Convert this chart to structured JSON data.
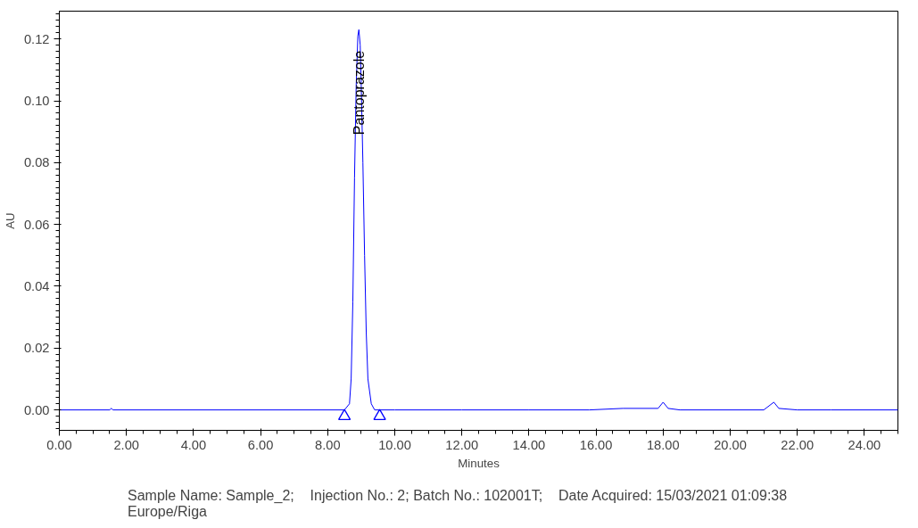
{
  "chart_data": {
    "type": "line",
    "xlabel": "Minutes",
    "ylabel": "AU",
    "xlim": [
      0,
      25
    ],
    "ylim": [
      -0.0066,
      0.129
    ],
    "xticks": [
      {
        "value": 0,
        "label": "0.00"
      },
      {
        "value": 2,
        "label": "2.00"
      },
      {
        "value": 4,
        "label": "4.00"
      },
      {
        "value": 6,
        "label": "6.00"
      },
      {
        "value": 8,
        "label": "8.00"
      },
      {
        "value": 10,
        "label": "10.00"
      },
      {
        "value": 12,
        "label": "12.00"
      },
      {
        "value": 14,
        "label": "14.00"
      },
      {
        "value": 16,
        "label": "16.00"
      },
      {
        "value": 18,
        "label": "18.00"
      },
      {
        "value": 20,
        "label": "20.00"
      },
      {
        "value": 22,
        "label": "22.00"
      },
      {
        "value": 24,
        "label": "24.00"
      }
    ],
    "yticks": [
      {
        "value": 0,
        "label": "0.00"
      },
      {
        "value": 0.02,
        "label": "0.02"
      },
      {
        "value": 0.04,
        "label": "0.04"
      },
      {
        "value": 0.06,
        "label": "0.06"
      },
      {
        "value": 0.08,
        "label": "0.08"
      },
      {
        "value": 0.1,
        "label": "0.10"
      },
      {
        "value": 0.12,
        "label": "0.12"
      }
    ],
    "grid": false,
    "legend": "bottom",
    "marker": "none",
    "line_style": "solid",
    "series": [
      {
        "name": "Sample Name: Sample_2;    Injection No.: 2; Batch No.: 102001T;    Date Acquired: 15/03/2021 01:09:38\nEurope/Riga",
        "color": "#0000ff",
        "x": [
          0,
          1.5,
          1.55,
          1.6,
          8.5,
          8.65,
          8.7,
          8.75,
          8.8,
          8.85,
          8.9,
          8.93,
          8.97,
          9.0,
          9.05,
          9.1,
          9.15,
          9.2,
          9.3,
          9.4,
          10,
          12,
          14,
          15.8,
          16.8,
          17.85,
          18.0,
          18.15,
          18.5,
          21.0,
          21.3,
          21.45,
          22,
          23,
          25
        ],
        "values": [
          0,
          0,
          0.0005,
          0,
          0,
          0.002,
          0.01,
          0.035,
          0.075,
          0.105,
          0.121,
          0.123,
          0.118,
          0.105,
          0.08,
          0.05,
          0.025,
          0.01,
          0.002,
          0,
          0,
          0,
          0,
          0,
          0.0005,
          0.0005,
          0.0025,
          0.0005,
          0,
          0,
          0.0025,
          0.0005,
          0,
          0,
          0
        ]
      },
      {
        "type": "scatter",
        "marker": "triangle",
        "color": "#0000ff",
        "x": [
          8.5,
          9.55
        ],
        "values": [
          -0.002,
          -0.002
        ]
      }
    ],
    "annotations": [
      {
        "text": "Pantoprazole",
        "x": 8.93,
        "y": 0.089
      }
    ]
  }
}
